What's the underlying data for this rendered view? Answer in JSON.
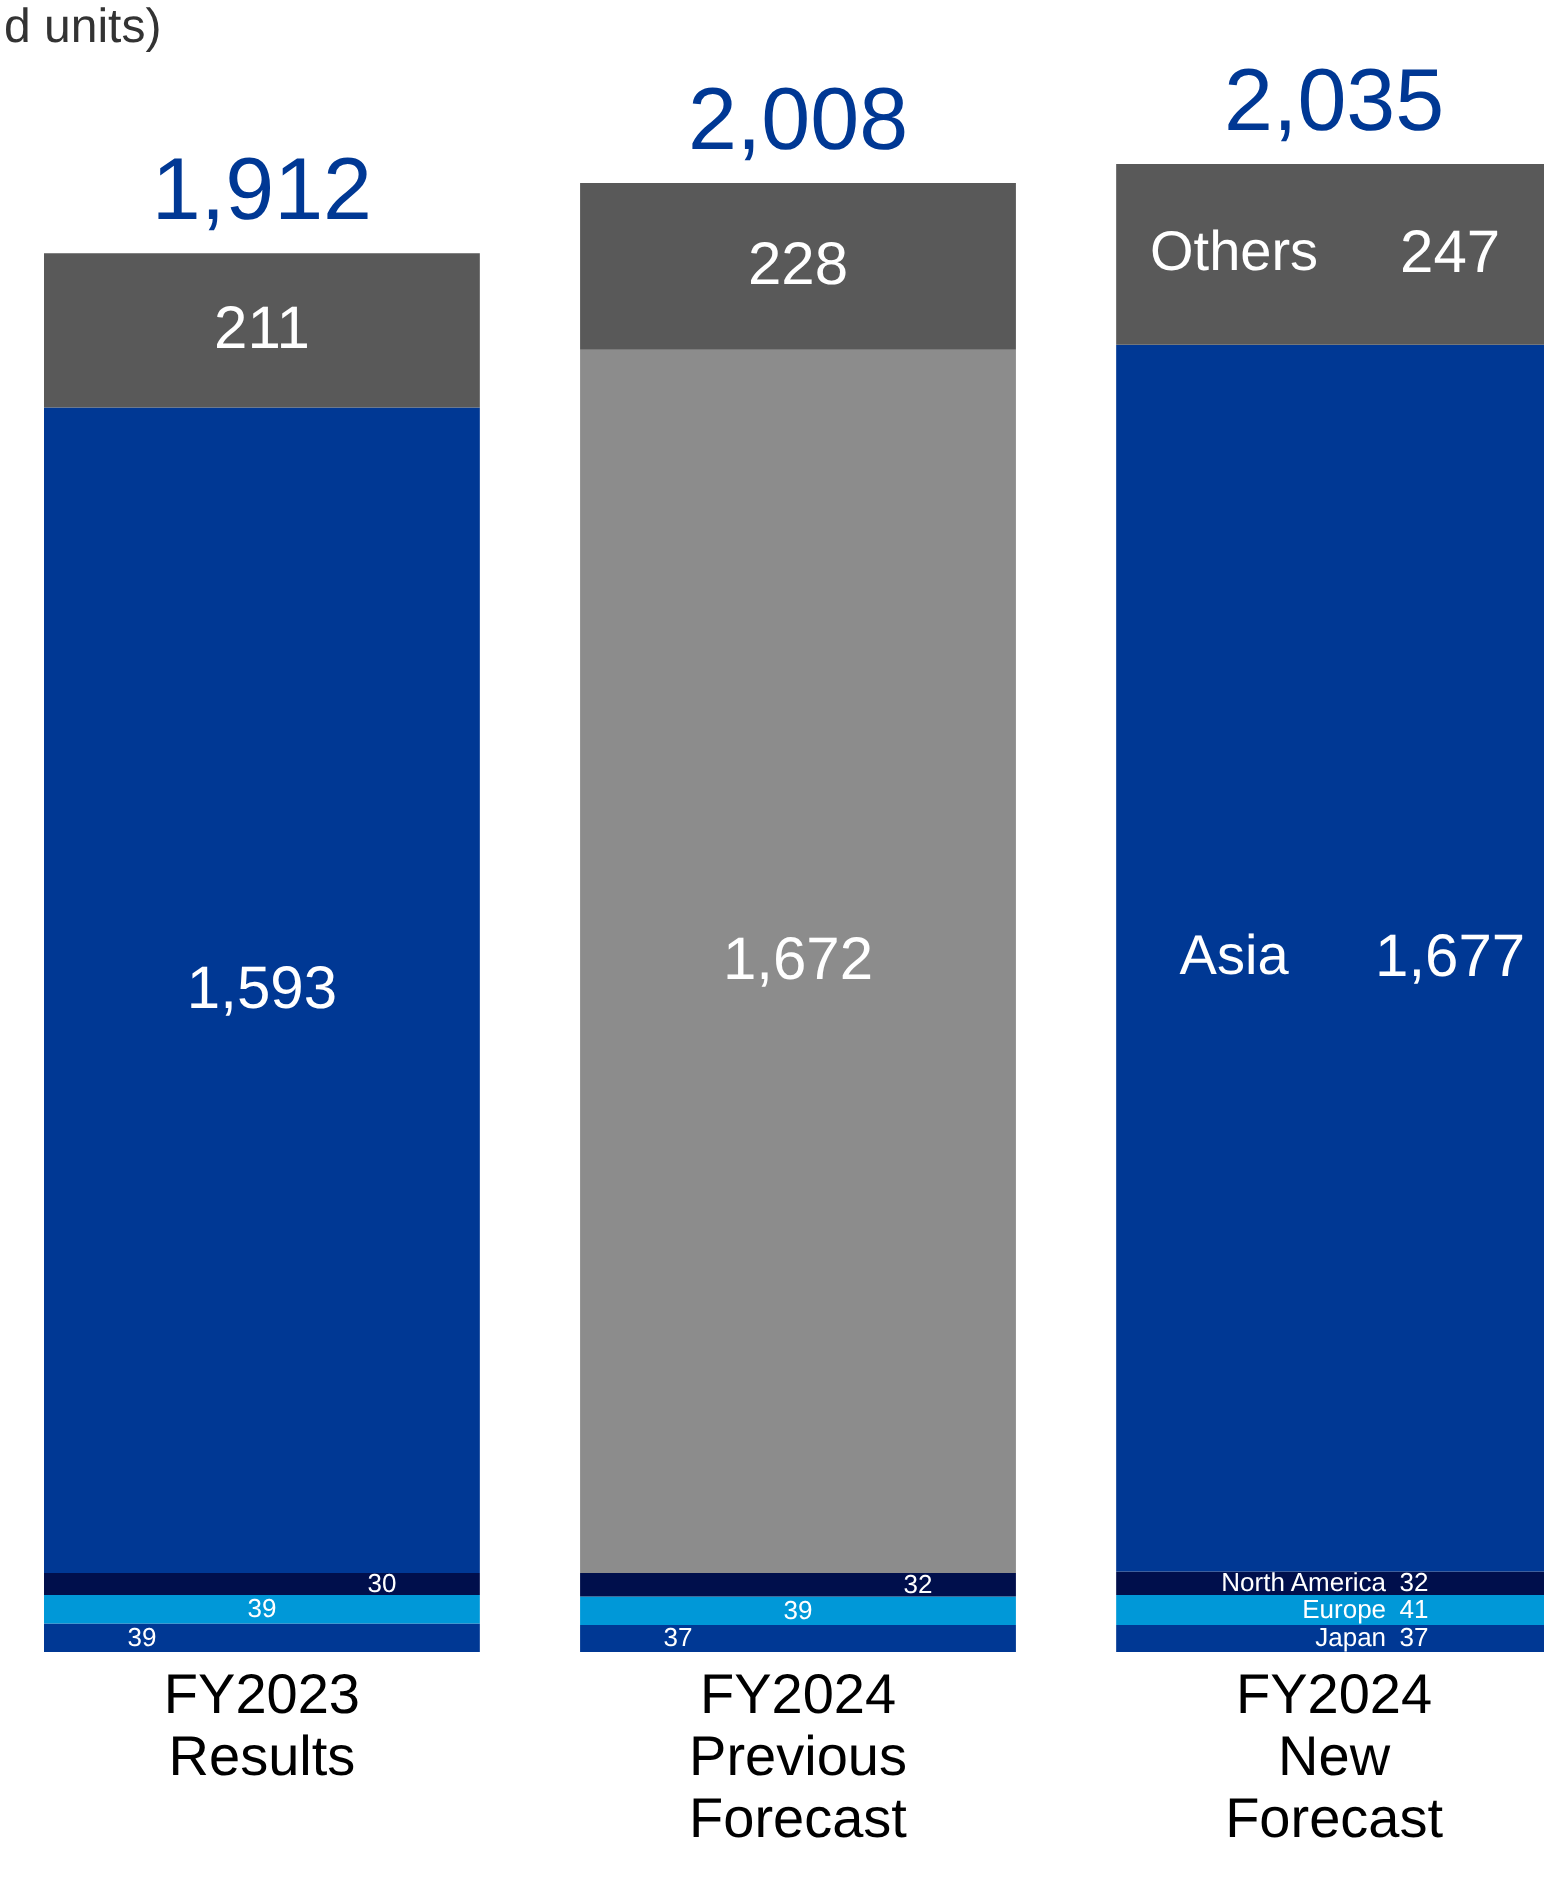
{
  "chart_data": {
    "type": "bar",
    "stacked": true,
    "annotations": [
      "d units)"
    ],
    "categories": [
      "FY2023\nResults",
      "FY2024\nPrevious\nForecast",
      "FY2024\nNew\nForecast"
    ],
    "series": [
      {
        "name": "Japan",
        "color": "#003894",
        "values": [
          39,
          37,
          37
        ],
        "value_labels": [
          "39",
          "37",
          "37"
        ]
      },
      {
        "name": "Europe",
        "color": "#0098d8",
        "values": [
          39,
          39,
          41
        ],
        "value_labels": [
          "39",
          "39",
          "41"
        ]
      },
      {
        "name": "North America",
        "color": "#000f4c",
        "values": [
          30,
          32,
          32
        ],
        "value_labels": [
          "30",
          "32",
          "32"
        ]
      },
      {
        "name": "Asia",
        "color": "#003894",
        "colors": [
          null,
          "#8c8c8c",
          null
        ],
        "values": [
          1593,
          1672,
          1677
        ],
        "value_labels": [
          "1,593",
          "1,672",
          "1,677"
        ]
      },
      {
        "name": "Others",
        "color": "#595959",
        "values": [
          211,
          228,
          247
        ],
        "value_labels": [
          "211",
          "228",
          "247"
        ]
      }
    ],
    "totals": [
      "1,912",
      "2,008",
      "2,035"
    ]
  }
}
